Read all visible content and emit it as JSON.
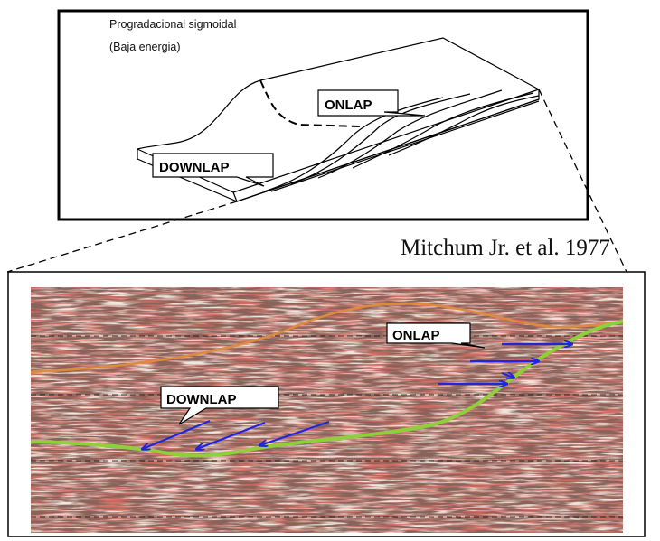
{
  "top_block": {
    "title": "Progradacional sigmoidal",
    "subtitle": "(Baja energia)",
    "onlap_label": "ONLAP",
    "downlap_label": "DOWNLAP"
  },
  "citation": "Mitchum Jr. et al. 1977",
  "seismic_section": {
    "onlap_label": "ONLAP",
    "downlap_label": "DOWNLAP"
  },
  "colors": {
    "frame": "#000000",
    "orange_horizon": "#e08a3c",
    "green_horizon": "#8fd03a",
    "arrow_blue": "#1f25e0",
    "seismic_dark": "#3a2420",
    "seismic_red": "#9a2a22",
    "seismic_light": "#efe7df"
  },
  "icons": [
    "blue-arrow-icon"
  ]
}
